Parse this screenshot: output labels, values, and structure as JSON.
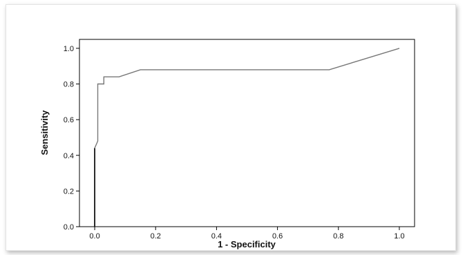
{
  "chart_data": {
    "type": "line",
    "xlabel": "1 - Specificity",
    "ylabel": "Sensitivity",
    "xlim": [
      -0.05,
      1.05
    ],
    "ylim": [
      0.0,
      1.05
    ],
    "xticks": [
      0.0,
      0.2,
      0.4,
      0.6,
      0.8,
      1.0
    ],
    "yticks": [
      0.0,
      0.2,
      0.4,
      0.6,
      0.8,
      1.0
    ],
    "xtick_labels": [
      "0.0",
      "0.2",
      "0.4",
      "0.6",
      "0.8",
      "1.0"
    ],
    "ytick_labels": [
      "0.0",
      "0.2",
      "0.4",
      "0.6",
      "0.8",
      "1.0"
    ],
    "grid": false,
    "line_color": "#777777",
    "axis_color": "#000000",
    "series": [
      {
        "x": [
          0.0,
          0.0,
          0.0,
          0.01,
          0.01,
          0.01,
          0.03,
          0.03,
          0.05,
          0.08,
          0.15,
          0.77,
          1.0
        ],
        "y": [
          0.0,
          0.44,
          0.44,
          0.48,
          0.48,
          0.8,
          0.8,
          0.84,
          0.84,
          0.84,
          0.88,
          0.88,
          1.0
        ]
      }
    ]
  }
}
